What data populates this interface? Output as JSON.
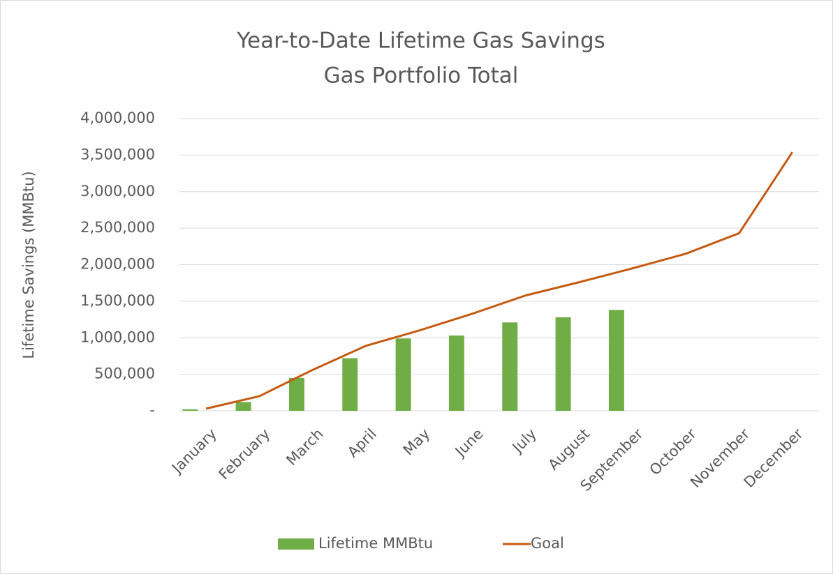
{
  "chart_data": {
    "type": "bar_line",
    "title": "Year-to-Date Lifetime Gas Savings",
    "subtitle": "Gas Portfolio Total",
    "y_label": "Lifetime Savings (MMBtu)",
    "categories": [
      "January",
      "February",
      "March",
      "April",
      "May",
      "June",
      "July",
      "August",
      "September",
      "October",
      "November",
      "December"
    ],
    "series": [
      {
        "name": "Lifetime MMBtu",
        "type": "bar",
        "color": "#70ad47",
        "values": [
          20000,
          120000,
          450000,
          720000,
          990000,
          1030000,
          1210000,
          1280000,
          1380000,
          null,
          null,
          null
        ]
      },
      {
        "name": "Goal",
        "type": "line",
        "color": "#c55a11",
        "values": [
          30000,
          200000,
          560000,
          890000,
          1100000,
          1330000,
          1580000,
          1760000,
          1950000,
          2150000,
          2430000,
          3540000
        ]
      }
    ],
    "ylim": [
      0,
      4000000
    ],
    "yticks": [
      {
        "value": 0,
        "label": "-"
      },
      {
        "value": 500000,
        "label": "500,000"
      },
      {
        "value": 1000000,
        "label": "1,000,000"
      },
      {
        "value": 1500000,
        "label": "1,500,000"
      },
      {
        "value": 2000000,
        "label": "2,000,000"
      },
      {
        "value": 2500000,
        "label": "2,500,000"
      },
      {
        "value": 3000000,
        "label": "3,000,000"
      },
      {
        "value": 3500000,
        "label": "3,500,000"
      },
      {
        "value": 4000000,
        "label": "4,000,000"
      }
    ],
    "grid": true,
    "legend": "bottom"
  }
}
